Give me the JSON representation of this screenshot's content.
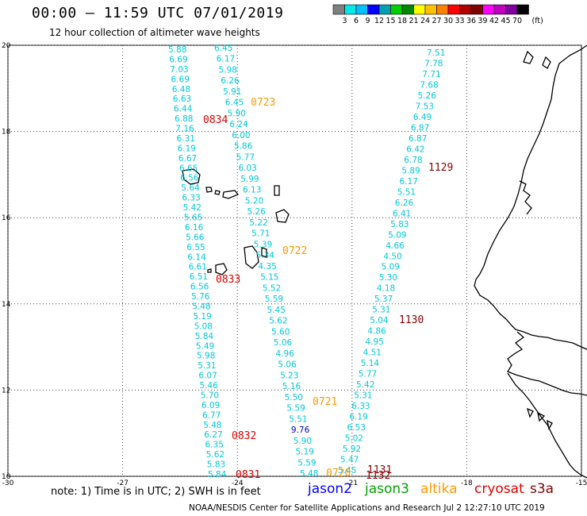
{
  "title": "00:00 – 11:59 UTC 07/01/2019",
  "subtitle": "12 hour collection of altimeter wave heights",
  "note": "note: 1) Time is in UTC; 2) SWH is in feet",
  "credit": "NOAA/NESDIS Center for Satellite Applications and Research   Jul  2 12:27:10 UTC 2019",
  "legend": {
    "unit": "(ft)",
    "colors": [
      "#808080",
      "#00e8e8",
      "#00c0ff",
      "#0000ff",
      "#00a0b0",
      "#00d000",
      "#008800",
      "#ffff00",
      "#ffc000",
      "#ff8000",
      "#ff0000",
      "#b00000",
      "#800000",
      "#ff00ff",
      "#c000c0",
      "#8000a0",
      "#000000"
    ],
    "labels": [
      "3",
      "6",
      "9",
      "12",
      "15",
      "18",
      "21",
      "24",
      "27",
      "30",
      "33",
      "36",
      "39",
      "42",
      "45",
      "70"
    ]
  },
  "satellites": [
    {
      "name": "jason2",
      "color": "#0000ff"
    },
    {
      "name": "jason3",
      "color": "#00a000"
    },
    {
      "name": "altika",
      "color": "#ff9900"
    },
    {
      "name": "cryosat",
      "color": "#dd0000"
    },
    {
      "name": "s3a",
      "color": "#8b0000"
    }
  ],
  "axes": {
    "lon_ticks": [
      "-30",
      "-27",
      "-24",
      "-21",
      "-18",
      "-15"
    ],
    "lat_ticks": [
      "20",
      "18",
      "16",
      "14",
      "12",
      "10"
    ]
  },
  "track_labels": [
    {
      "text": "0723",
      "color": "#ff9900"
    },
    {
      "text": "0834",
      "color": "#dd0000"
    },
    {
      "text": "1129",
      "color": "#8b0000"
    },
    {
      "text": "0722",
      "color": "#ff9900"
    },
    {
      "text": "0833",
      "color": "#dd0000"
    },
    {
      "text": "1130",
      "color": "#8b0000"
    },
    {
      "text": "0721",
      "color": "#ff9900"
    },
    {
      "text": "0832",
      "color": "#dd0000"
    },
    {
      "text": "0831",
      "color": "#dd0000"
    },
    {
      "text": "0720",
      "color": "#ff9900"
    },
    {
      "text": "1131",
      "color": "#8b0000"
    },
    {
      "text": "1132",
      "color": "#8b0000"
    }
  ],
  "tracks": {
    "cryosat": [
      "5.88",
      "6.69",
      "7.03",
      "6.69",
      "6.48",
      "6.63",
      "6.44",
      "6.88",
      "7.16",
      "6.31",
      "6.19",
      "6.67",
      "6.65",
      "6.56",
      "5.64",
      "6.33",
      "5.42",
      "5.65",
      "6.16",
      "5.66",
      "6.55",
      "6.14",
      "6.61",
      "6.51",
      "6.56",
      "5.76",
      "5.48",
      "5.19",
      "5.08",
      "5.84",
      "5.49",
      "5.98",
      "5.31",
      "6.07",
      "5.46",
      "5.70",
      "6.09",
      "6.77",
      "5.48",
      "6.27",
      "6.35",
      "5.62",
      "5.83",
      "5.84"
    ],
    "altika": [
      "6.45",
      "6.17",
      "5.98",
      "6.26",
      "5.91",
      "6.45",
      "5.90",
      "6.24",
      "6.00",
      "5.86",
      "5.77",
      "6.03",
      "5.99",
      "6.13",
      "5.20",
      "5.26",
      "5.22",
      "5.71",
      "5.39",
      "5.34",
      "4.35",
      "5.15",
      "5.52",
      "5.59",
      "5.45",
      "5.62",
      "5.60",
      "5.06",
      "4.96",
      "5.06",
      "5.23",
      "5.16",
      "5.50",
      "5.59",
      "5.51",
      "9.76",
      "5.90",
      "5.19",
      "5.59",
      "5.48"
    ],
    "s3a": [
      "7.51",
      "7.78",
      "7.71",
      "7.68",
      "5.26",
      "7.53",
      "6.49",
      "6.87",
      "6.87",
      "6.42",
      "6.78",
      "5.89",
      "6.17",
      "5.51",
      "6.26",
      "6.41",
      "5.83",
      "5.09",
      "4.66",
      "4.50",
      "5.09",
      "5.30",
      "4.18",
      "5.37",
      "5.31",
      "5.04",
      "4.86",
      "4.95",
      "4.51",
      "5.14",
      "5.77",
      "5.42",
      "5.31",
      "6.33",
      "6.19",
      "6.53",
      "5.02",
      "5.92",
      "5.47",
      "5.45"
    ]
  }
}
